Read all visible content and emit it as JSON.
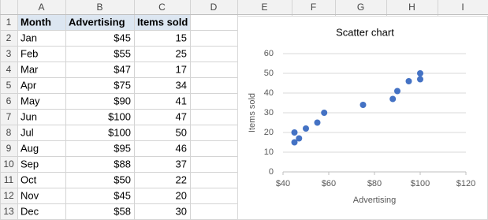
{
  "sheet": {
    "column_headers": [
      "A",
      "B",
      "C",
      "D",
      "E",
      "F",
      "G",
      "H",
      "I"
    ],
    "row_numbers": [
      1,
      2,
      3,
      4,
      5,
      6,
      7,
      8,
      9,
      10,
      11,
      12,
      13
    ],
    "table": {
      "header": [
        "Month",
        "Advertising",
        "Items sold"
      ],
      "rows": [
        [
          "Jan",
          "$45",
          "15"
        ],
        [
          "Feb",
          "$55",
          "25"
        ],
        [
          "Mar",
          "$47",
          "17"
        ],
        [
          "Apr",
          "$75",
          "34"
        ],
        [
          "May",
          "$90",
          "41"
        ],
        [
          "Jun",
          "$100",
          "47"
        ],
        [
          "Jul",
          "$100",
          "50"
        ],
        [
          "Aug",
          "$95",
          "46"
        ],
        [
          "Sep",
          "$88",
          "37"
        ],
        [
          "Oct",
          "$50",
          "22"
        ],
        [
          "Nov",
          "$45",
          "20"
        ],
        [
          "Dec",
          "$58",
          "30"
        ]
      ]
    }
  },
  "chart_data": {
    "type": "scatter",
    "title": "Scatter chart",
    "x_label": "Advertising",
    "y_label": "Items sold",
    "x": [
      45,
      55,
      47,
      75,
      90,
      100,
      100,
      95,
      88,
      50,
      45,
      58
    ],
    "values": [
      15,
      25,
      17,
      34,
      41,
      47,
      50,
      46,
      37,
      22,
      20,
      30
    ],
    "color": "#4472c4",
    "xlim": [
      40,
      120
    ],
    "xticks": [
      {
        "value": 40,
        "label": "$40"
      },
      {
        "value": 60,
        "label": "$60"
      },
      {
        "value": 80,
        "label": "$80"
      },
      {
        "value": 100,
        "label": "$100"
      },
      {
        "value": 120,
        "label": "$120"
      }
    ],
    "ylim": [
      0,
      60
    ],
    "yticks": [
      0,
      10,
      20,
      30,
      40,
      50,
      60
    ],
    "grid": true
  }
}
